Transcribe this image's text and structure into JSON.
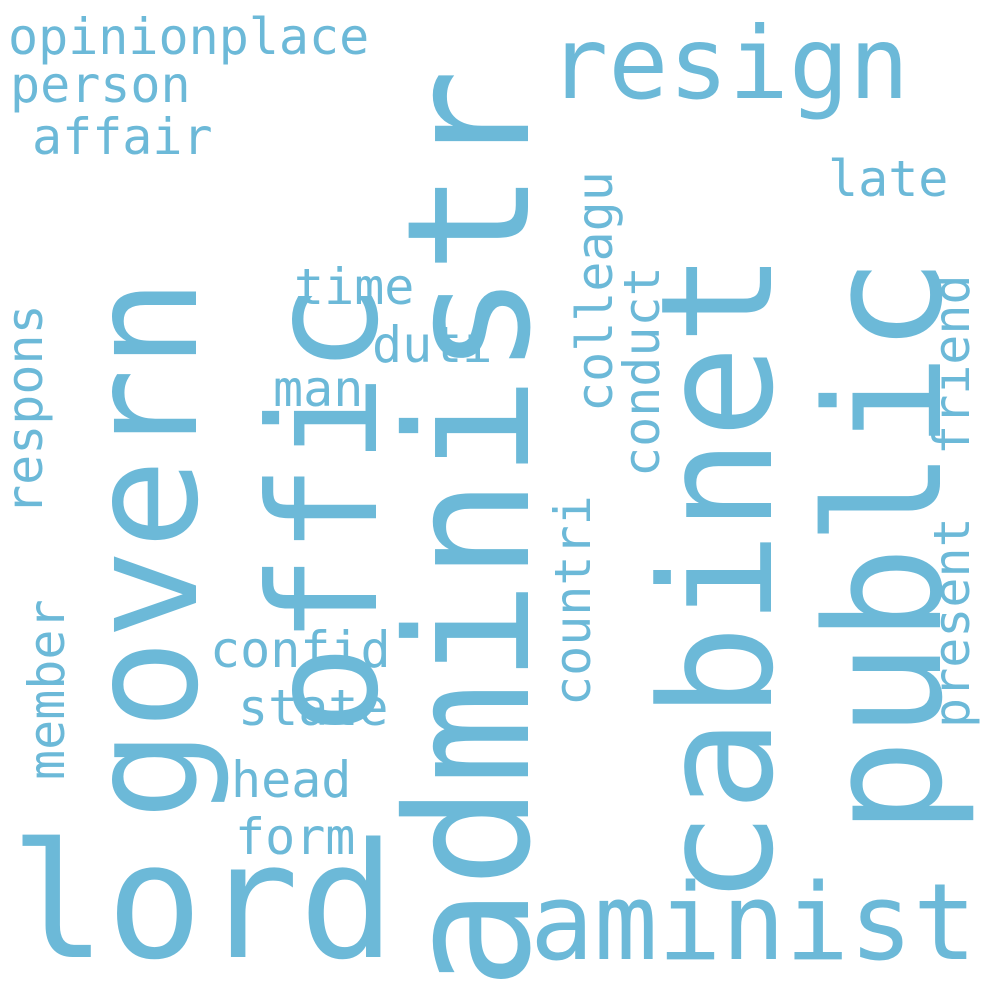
{
  "word_cloud": {
    "color": "#6cb9d8",
    "background": "#ffffff",
    "words": {
      "opinionplace": "opinionplace",
      "person": "person",
      "affair": "affair",
      "resign": "resign",
      "late": "late",
      "time": "time",
      "duti": "duti",
      "man": "man",
      "confid": "confid",
      "state": "state",
      "head": "head",
      "form": "form",
      "lord": "lord",
      "aminist": "aminist",
      "govern": "govern",
      "offic": "offic",
      "administr": "administr",
      "cabinet": "cabinet",
      "public": "public",
      "respons": "respons",
      "member": "member",
      "colleagu": "colleagu",
      "conduct": "conduct",
      "countri": "countri",
      "present": "present",
      "friend": "friend"
    }
  }
}
